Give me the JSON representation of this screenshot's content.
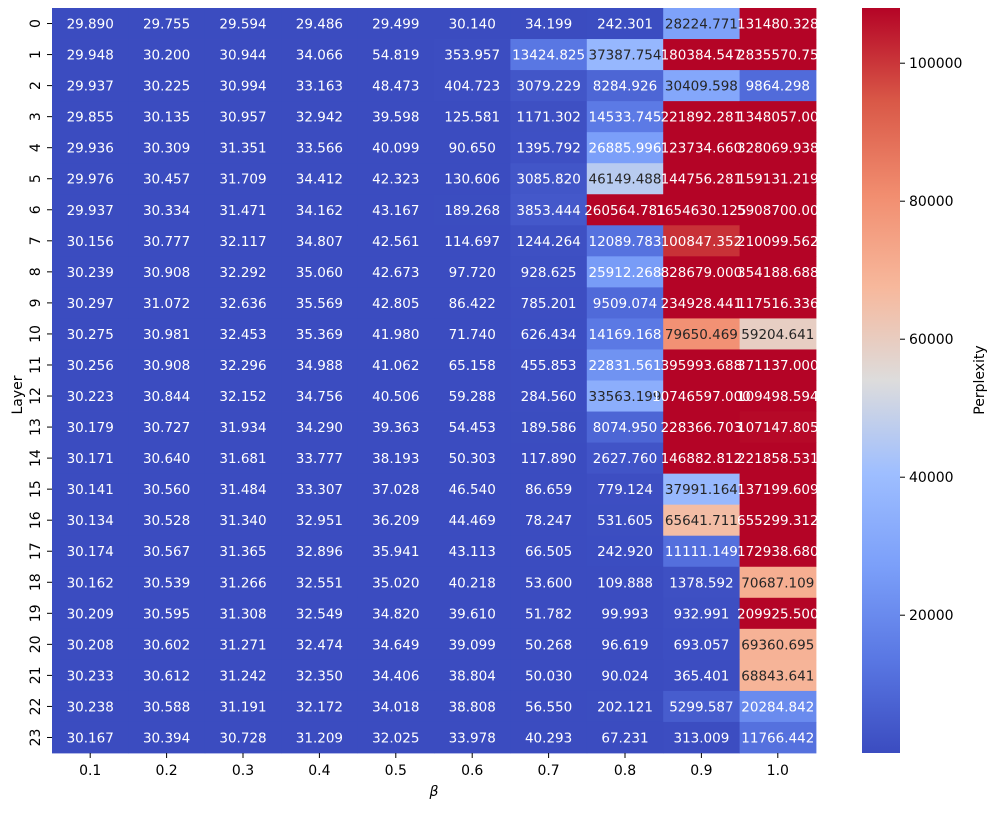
{
  "chart_data": {
    "type": "heatmap",
    "title": "",
    "xlabel": "β",
    "ylabel": "Layer",
    "x_categories": [
      "0.1",
      "0.2",
      "0.3",
      "0.4",
      "0.5",
      "0.6",
      "0.7",
      "0.8",
      "0.9",
      "1.0"
    ],
    "y_categories": [
      "0",
      "1",
      "2",
      "3",
      "4",
      "5",
      "6",
      "7",
      "8",
      "9",
      "10",
      "11",
      "12",
      "13",
      "14",
      "15",
      "16",
      "17",
      "18",
      "19",
      "20",
      "21",
      "22",
      "23"
    ],
    "colormap": "coolwarm",
    "color_range": [
      29.486,
      108000
    ],
    "values": [
      [
        "29.890",
        "29.755",
        "29.594",
        "29.486",
        "29.499",
        "30.140",
        "34.199",
        "242.301",
        "28224.771",
        "131480.328"
      ],
      [
        "29.948",
        "30.200",
        "30.944",
        "34.066",
        "54.819",
        "353.957",
        "13424.825",
        "37387.754",
        "180384.547",
        "2835570.75"
      ],
      [
        "29.937",
        "30.225",
        "30.994",
        "33.163",
        "48.473",
        "404.723",
        "3079.229",
        "8284.926",
        "30409.598",
        "9864.298"
      ],
      [
        "29.855",
        "30.135",
        "30.957",
        "32.942",
        "39.598",
        "125.581",
        "1171.302",
        "14533.745",
        "221892.281",
        "1348057.00"
      ],
      [
        "29.936",
        "30.309",
        "31.351",
        "33.566",
        "40.099",
        "90.650",
        "1395.792",
        "26885.996",
        "123734.660",
        "328069.938"
      ],
      [
        "29.976",
        "30.457",
        "31.709",
        "34.412",
        "42.323",
        "130.606",
        "3085.820",
        "46149.488",
        "144756.281",
        "159131.219"
      ],
      [
        "29.937",
        "30.334",
        "31.471",
        "34.162",
        "43.167",
        "189.268",
        "3853.444",
        "260564.781",
        "1654630.125",
        "5908700.00"
      ],
      [
        "30.156",
        "30.777",
        "32.117",
        "34.807",
        "42.561",
        "114.697",
        "1244.264",
        "12089.783",
        "100847.352",
        "210099.562"
      ],
      [
        "30.239",
        "30.908",
        "32.292",
        "35.060",
        "42.673",
        "97.720",
        "928.625",
        "25912.268",
        "828679.000",
        "354188.688"
      ],
      [
        "30.297",
        "31.072",
        "32.636",
        "35.569",
        "42.805",
        "86.422",
        "785.201",
        "9509.074",
        "234928.441",
        "117516.336"
      ],
      [
        "30.275",
        "30.981",
        "32.453",
        "35.369",
        "41.980",
        "71.740",
        "626.434",
        "14169.168",
        "79650.469",
        "59204.641"
      ],
      [
        "30.256",
        "30.908",
        "32.296",
        "34.988",
        "41.062",
        "65.158",
        "455.853",
        "22831.561",
        "395993.688",
        "371137.000"
      ],
      [
        "30.223",
        "30.844",
        "32.152",
        "34.756",
        "40.506",
        "59.288",
        "284.560",
        "33563.199",
        "10746597.000",
        "109498.594"
      ],
      [
        "30.179",
        "30.727",
        "31.934",
        "34.290",
        "39.363",
        "54.453",
        "189.586",
        "8074.950",
        "228366.703",
        "107147.805"
      ],
      [
        "30.171",
        "30.640",
        "31.681",
        "33.777",
        "38.193",
        "50.303",
        "117.890",
        "2627.760",
        "146882.812",
        "221858.531"
      ],
      [
        "30.141",
        "30.560",
        "31.484",
        "33.307",
        "37.028",
        "46.540",
        "86.659",
        "779.124",
        "37991.164",
        "137199.609"
      ],
      [
        "30.134",
        "30.528",
        "31.340",
        "32.951",
        "36.209",
        "44.469",
        "78.247",
        "531.605",
        "65641.711",
        "655299.312"
      ],
      [
        "30.174",
        "30.567",
        "31.365",
        "32.896",
        "35.941",
        "43.113",
        "66.505",
        "242.920",
        "11111.149",
        "172938.680"
      ],
      [
        "30.162",
        "30.539",
        "31.266",
        "32.551",
        "35.020",
        "40.218",
        "53.600",
        "109.888",
        "1378.592",
        "70687.109"
      ],
      [
        "30.209",
        "30.595",
        "31.308",
        "32.549",
        "34.820",
        "39.610",
        "51.782",
        "99.993",
        "932.991",
        "209925.500"
      ],
      [
        "30.208",
        "30.602",
        "31.271",
        "32.474",
        "34.649",
        "39.099",
        "50.268",
        "96.619",
        "693.057",
        "69360.695"
      ],
      [
        "30.233",
        "30.612",
        "31.242",
        "32.350",
        "34.406",
        "38.804",
        "50.030",
        "90.024",
        "365.401",
        "68843.641"
      ],
      [
        "30.238",
        "30.588",
        "31.191",
        "32.172",
        "34.018",
        "38.808",
        "56.550",
        "202.121",
        "5299.587",
        "20284.842"
      ],
      [
        "30.167",
        "30.394",
        "30.728",
        "31.209",
        "32.025",
        "33.978",
        "40.293",
        "67.231",
        "313.009",
        "11766.442"
      ]
    ],
    "colorbar": {
      "label": "Perplexity",
      "ticks": [
        20000,
        40000,
        60000,
        80000,
        100000
      ],
      "tick_labels": [
        "20000",
        "40000",
        "60000",
        "80000",
        "100000"
      ]
    }
  }
}
